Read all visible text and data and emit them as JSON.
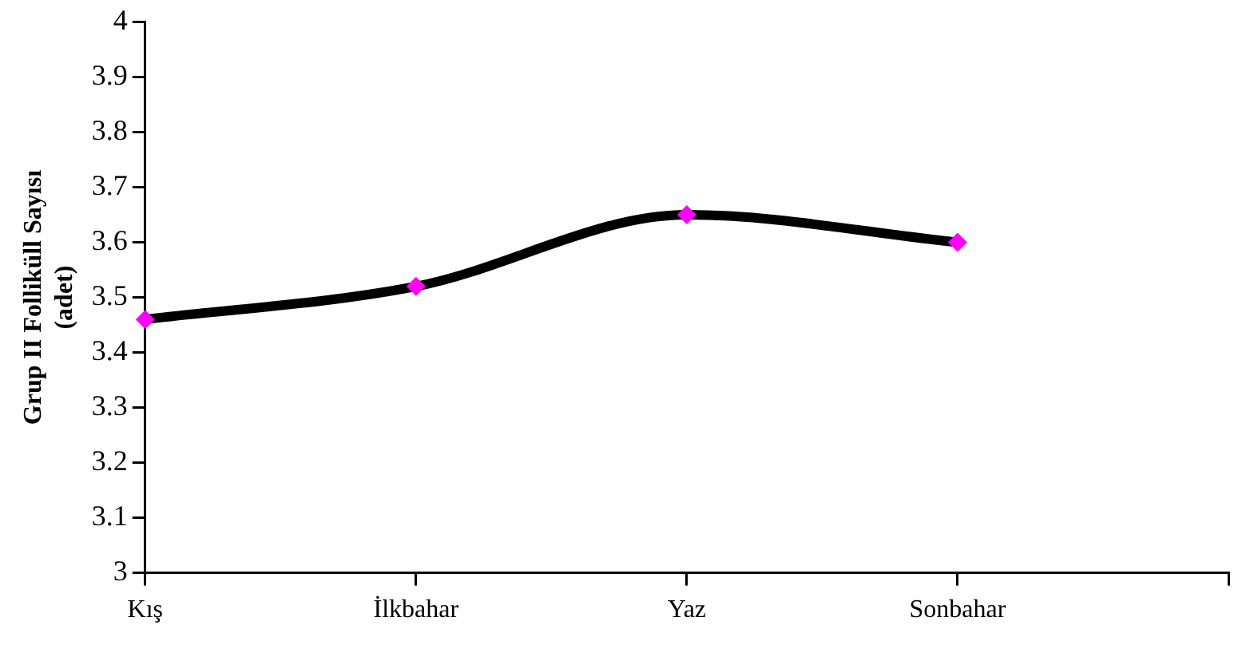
{
  "chart_data": {
    "type": "line",
    "ylabel": "Grup II Folliküll Sayısı\n(adet)",
    "categories": [
      "Kış",
      "İlkbahar",
      "Yaz",
      "Sonbahar",
      null
    ],
    "series": [
      {
        "color": "#000000",
        "colors": [
          "#ff00ff",
          "#ff00ff",
          "#ff00ff",
          "#ff00ff",
          "#ff00ff"
        ],
        "values": [
          3.46,
          3.52,
          3.65,
          3.6,
          null
        ]
      }
    ],
    "marker": "diamond",
    "ylim": [
      3,
      4
    ],
    "yticks": [
      3,
      3.1,
      3.2,
      3.3,
      3.4,
      3.5,
      3.6,
      3.7,
      3.8,
      3.9,
      4
    ],
    "grid": false,
    "legend": false
  }
}
